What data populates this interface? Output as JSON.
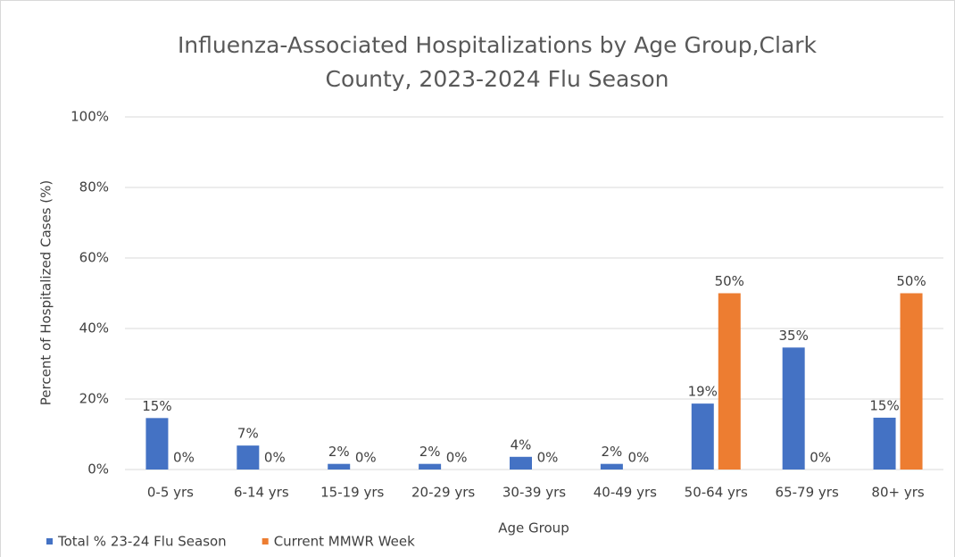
{
  "chart_data": {
    "type": "bar",
    "title": "Influenza-Associated Hospitalizations by Age Group,Clark County, 2023-2024 Flu Season",
    "xlabel": "Age Group",
    "ylabel": "Percent of Hospitalized Cases (%)",
    "categories": [
      "0-5 yrs",
      "6-14 yrs",
      "15-19 yrs",
      "20-29 yrs",
      "30-39 yrs",
      "40-49 yrs",
      "50-64 yrs",
      "65-79 yrs",
      "80+ yrs"
    ],
    "series": [
      {
        "name": "Total % 23-24 Flu Season",
        "color": "#4472c4",
        "values": [
          14.6,
          6.8,
          1.6,
          1.6,
          3.6,
          1.6,
          18.7,
          34.6,
          14.7
        ],
        "value_labels": [
          "15%",
          "7%",
          "2%",
          "2%",
          "4%",
          "2%",
          "19%",
          "35%",
          "15%"
        ]
      },
      {
        "name": "Current MMWR Week",
        "color": "#ed7d31",
        "values": [
          0,
          0,
          0,
          0,
          0,
          0,
          50,
          0,
          50
        ],
        "value_labels": [
          "0%",
          "0%",
          "0%",
          "0%",
          "0%",
          "0%",
          "50%",
          "0%",
          "50%"
        ]
      }
    ],
    "ylim": [
      0,
      100
    ],
    "yticks": [
      {
        "value": 0,
        "label": "0%"
      },
      {
        "value": 20,
        "label": "20%"
      },
      {
        "value": 40,
        "label": "40%"
      },
      {
        "value": 60,
        "label": "60%"
      },
      {
        "value": 80,
        "label": "80%"
      },
      {
        "value": 100,
        "label": "100%"
      }
    ],
    "grid": true
  }
}
